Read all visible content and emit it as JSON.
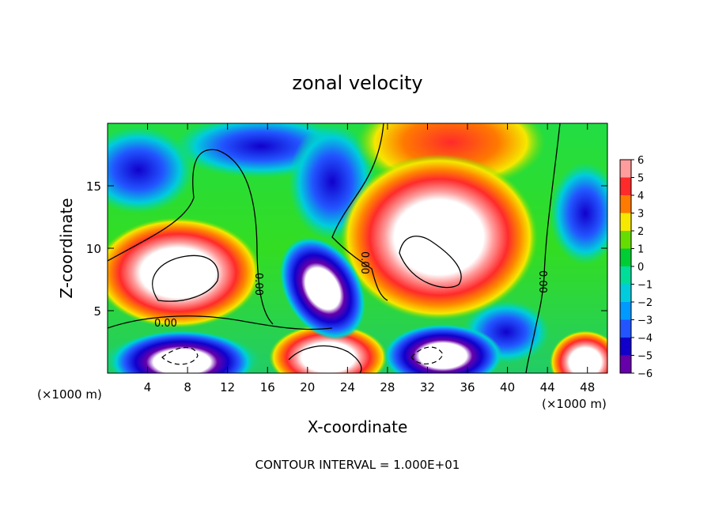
{
  "chart_data": {
    "type": "heatmap",
    "title": "zonal velocity",
    "xlabel": "X-coordinate",
    "ylabel": "Z-coordinate",
    "x_unit_left": "(×1000 m)",
    "x_unit_right": "(×1000 m)",
    "footer": "CONTOUR INTERVAL = 1.000E+01",
    "xlim": [
      0,
      50
    ],
    "ylim": [
      0,
      20
    ],
    "x_ticks": [
      4,
      8,
      12,
      16,
      20,
      24,
      28,
      32,
      36,
      40,
      44,
      48
    ],
    "y_ticks": [
      5,
      10,
      15
    ],
    "colorbar": {
      "range": [
        -6,
        6
      ],
      "labels": [
        "6",
        "5",
        "4",
        "3",
        "2",
        "1",
        "0",
        "−1",
        "−2",
        "−3",
        "−4",
        "−5",
        "−6"
      ],
      "colors": [
        "#ff9d9d",
        "#ff2a2a",
        "#ff7a00",
        "#f6e800",
        "#66dd00",
        "#00cc33",
        "#00dd99",
        "#00ccdd",
        "#0099ff",
        "#2255ff",
        "#1100cc",
        "#6600aa"
      ],
      "saturation_color": "#ffffff"
    },
    "contour_labels": [
      "0.00",
      "0.00",
      "0.00",
      "0.00"
    ]
  }
}
